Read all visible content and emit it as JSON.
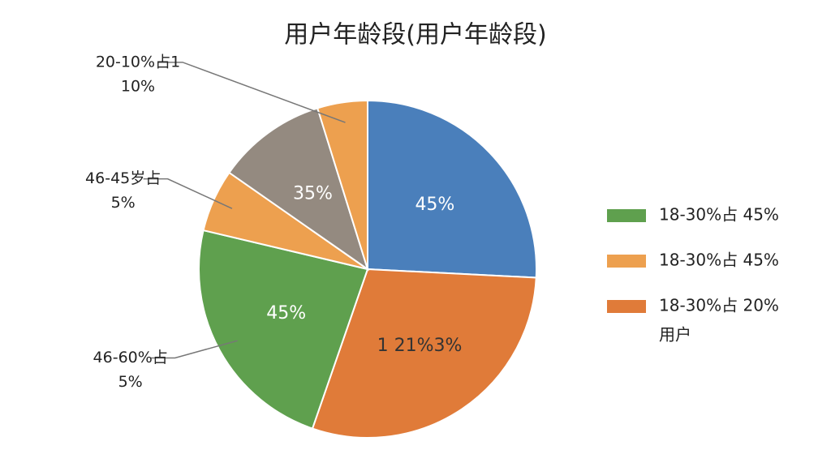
{
  "chart_data": {
    "type": "pie",
    "title": "用户年龄段(用户年龄段)",
    "values": [
      25.8,
      29.5,
      23.4,
      6,
      10.5,
      4.8
    ],
    "colors": [
      "#4a7fbb",
      "#e07b39",
      "#5fa04e",
      "#eda04f",
      "#948a80",
      "#eda04f"
    ],
    "inner_labels": [
      "45%",
      "1  21%3%",
      "45%",
      null,
      "35%",
      null
    ],
    "callouts": [
      {
        "slice": 5,
        "lines": [
          "20-10%占1",
          "10%"
        ]
      },
      {
        "slice": 3,
        "lines": [
          "46-45岁占",
          "5%"
        ]
      },
      {
        "slice": 2,
        "lines": [
          "46-60%占",
          "5%"
        ]
      }
    ],
    "legend": [
      {
        "lines": [
          "18-30%占  45%"
        ],
        "color": "#5fa04e"
      },
      {
        "lines": [
          "18-30%占  45%"
        ],
        "color": "#eda04f"
      },
      {
        "lines": [
          "18-30%占  20%",
          "用户"
        ],
        "color": "#e07b39"
      }
    ]
  }
}
